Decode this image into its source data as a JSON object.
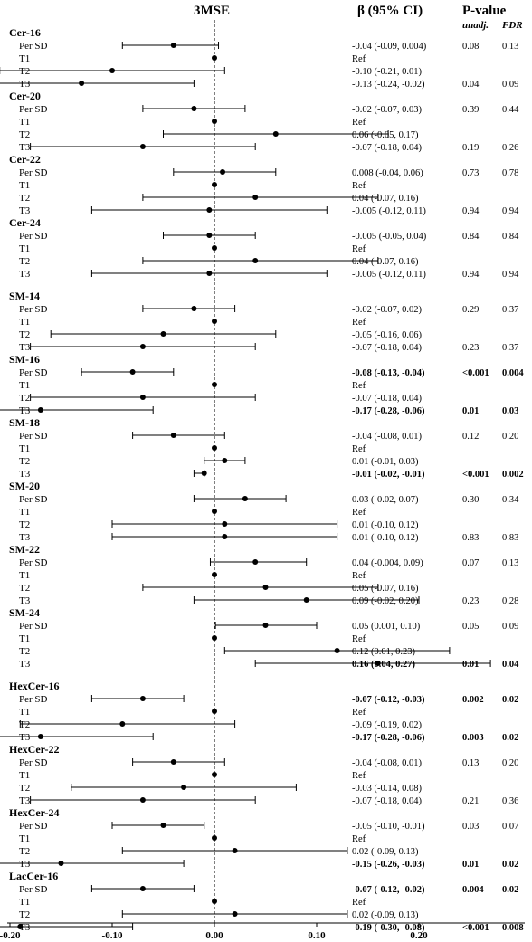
{
  "chart_data": {
    "type": "forest",
    "title": "3MSE",
    "beta_header": "β (95% CI)",
    "pvalue_header": "P-value",
    "unadj_header": "unadj.",
    "fdr_header": "FDR",
    "xlim": [
      -0.34,
      0.32
    ],
    "xticks": [
      "-0.20",
      "-0.10",
      "0.00",
      "0.10",
      "0.20"
    ],
    "xtick_values": [
      -0.2,
      -0.1,
      0.0,
      0.1,
      0.2
    ],
    "reference_line": 0.0,
    "groups": [
      {
        "name": "Cer-16",
        "rows": [
          {
            "label": "Per SD",
            "est": -0.04,
            "lo": -0.09,
            "hi": 0.004,
            "ci": "-0.04 (-0.09, 0.004)",
            "p": "0.08",
            "fdr": "0.13",
            "bold": false
          },
          {
            "label": "T1",
            "est": 0,
            "lo": null,
            "hi": null,
            "ci": "Ref",
            "p": "",
            "fdr": "",
            "bold": false
          },
          {
            "label": "T2",
            "est": -0.1,
            "lo": -0.21,
            "hi": 0.01,
            "ci": "-0.10 (-0.21, 0.01)",
            "p": "",
            "fdr": "",
            "bold": false
          },
          {
            "label": "T3",
            "est": -0.13,
            "lo": -0.24,
            "hi": -0.02,
            "ci": "-0.13 (-0.24, -0.02)",
            "p": "0.04",
            "fdr": "0.09",
            "bold": false
          }
        ]
      },
      {
        "name": "Cer-20",
        "rows": [
          {
            "label": "Per SD",
            "est": -0.02,
            "lo": -0.07,
            "hi": 0.03,
            "ci": "-0.02 (-0.07, 0.03)",
            "p": "0.39",
            "fdr": "0.44",
            "bold": false
          },
          {
            "label": "T1",
            "est": 0,
            "lo": null,
            "hi": null,
            "ci": "Ref",
            "p": "",
            "fdr": "",
            "bold": false
          },
          {
            "label": "T2",
            "est": 0.06,
            "lo": -0.05,
            "hi": 0.17,
            "ci": "0.06 (-0.05, 0.17)",
            "p": "",
            "fdr": "",
            "bold": false
          },
          {
            "label": "T3",
            "est": -0.07,
            "lo": -0.18,
            "hi": 0.04,
            "ci": "-0.07 (-0.18, 0.04)",
            "p": "0.19",
            "fdr": "0.26",
            "bold": false
          }
        ]
      },
      {
        "name": "Cer-22",
        "rows": [
          {
            "label": "Per SD",
            "est": 0.008,
            "lo": -0.04,
            "hi": 0.06,
            "ci": "0.008 (-0.04, 0.06)",
            "p": "0.73",
            "fdr": "0.78",
            "bold": false
          },
          {
            "label": "T1",
            "est": 0,
            "lo": null,
            "hi": null,
            "ci": "Ref",
            "p": "",
            "fdr": "",
            "bold": false
          },
          {
            "label": "T2",
            "est": 0.04,
            "lo": -0.07,
            "hi": 0.16,
            "ci": "0.04 (-0.07, 0.16)",
            "p": "",
            "fdr": "",
            "bold": false
          },
          {
            "label": "T3",
            "est": -0.005,
            "lo": -0.12,
            "hi": 0.11,
            "ci": "-0.005 (-0.12, 0.11)",
            "p": "0.94",
            "fdr": "0.94",
            "bold": false
          }
        ]
      },
      {
        "name": "Cer-24",
        "rows": [
          {
            "label": "Per SD",
            "est": -0.005,
            "lo": -0.05,
            "hi": 0.04,
            "ci": "-0.005 (-0.05, 0.04)",
            "p": "0.84",
            "fdr": "0.84",
            "bold": false
          },
          {
            "label": "T1",
            "est": 0,
            "lo": null,
            "hi": null,
            "ci": "Ref",
            "p": "",
            "fdr": "",
            "bold": false
          },
          {
            "label": "T2",
            "est": 0.04,
            "lo": -0.07,
            "hi": 0.16,
            "ci": "0.04 (-0.07, 0.16)",
            "p": "",
            "fdr": "",
            "bold": false
          },
          {
            "label": "T3",
            "est": -0.005,
            "lo": -0.12,
            "hi": 0.11,
            "ci": "-0.005 (-0.12, 0.11)",
            "p": "0.94",
            "fdr": "0.94",
            "bold": false
          }
        ]
      },
      {
        "name": "SM-14",
        "rows": [
          {
            "label": "Per SD",
            "est": -0.02,
            "lo": -0.07,
            "hi": 0.02,
            "ci": "-0.02 (-0.07, 0.02)",
            "p": "0.29",
            "fdr": "0.37",
            "bold": false
          },
          {
            "label": "T1",
            "est": 0,
            "lo": null,
            "hi": null,
            "ci": "Ref",
            "p": "",
            "fdr": "",
            "bold": false
          },
          {
            "label": "T2",
            "est": -0.05,
            "lo": -0.16,
            "hi": 0.06,
            "ci": "-0.05 (-0.16, 0.06)",
            "p": "",
            "fdr": "",
            "bold": false
          },
          {
            "label": "T3",
            "est": -0.07,
            "lo": -0.18,
            "hi": 0.04,
            "ci": "-0.07 (-0.18, 0.04)",
            "p": "0.23",
            "fdr": "0.37",
            "bold": false
          }
        ]
      },
      {
        "name": "SM-16",
        "rows": [
          {
            "label": "Per SD",
            "est": -0.08,
            "lo": -0.13,
            "hi": -0.04,
            "ci": "-0.08 (-0.13, -0.04)",
            "p": "<0.001",
            "fdr": "0.004",
            "bold": true
          },
          {
            "label": "T1",
            "est": 0,
            "lo": null,
            "hi": null,
            "ci": "Ref",
            "p": "",
            "fdr": "",
            "bold": false
          },
          {
            "label": "T2",
            "est": -0.07,
            "lo": -0.18,
            "hi": 0.04,
            "ci": "-0.07 (-0.18, 0.04)",
            "p": "",
            "fdr": "",
            "bold": false
          },
          {
            "label": "T3",
            "est": -0.17,
            "lo": -0.28,
            "hi": -0.06,
            "ci": "-0.17 (-0.28, -0.06)",
            "p": "0.01",
            "fdr": "0.03",
            "bold": true
          }
        ]
      },
      {
        "name": "SM-18",
        "rows": [
          {
            "label": "Per SD",
            "est": -0.04,
            "lo": -0.08,
            "hi": 0.01,
            "ci": "-0.04 (-0.08, 0.01)",
            "p": "0.12",
            "fdr": "0.20",
            "bold": false
          },
          {
            "label": "T1",
            "est": 0,
            "lo": null,
            "hi": null,
            "ci": "Ref",
            "p": "",
            "fdr": "",
            "bold": false
          },
          {
            "label": "T2",
            "est": 0.01,
            "lo": -0.01,
            "hi": 0.03,
            "ci": "0.01 (-0.01, 0.03)",
            "p": "",
            "fdr": "",
            "bold": false
          },
          {
            "label": "T3",
            "est": -0.01,
            "lo": -0.02,
            "hi": -0.01,
            "ci": "-0.01 (-0.02, -0.01)",
            "p": "<0.001",
            "fdr": "0.002",
            "bold": true
          }
        ]
      },
      {
        "name": "SM-20",
        "rows": [
          {
            "label": "Per SD",
            "est": 0.03,
            "lo": -0.02,
            "hi": 0.07,
            "ci": "0.03 (-0.02, 0.07)",
            "p": "0.30",
            "fdr": "0.34",
            "bold": false
          },
          {
            "label": "T1",
            "est": 0,
            "lo": null,
            "hi": null,
            "ci": "Ref",
            "p": "",
            "fdr": "",
            "bold": false
          },
          {
            "label": "T2",
            "est": 0.01,
            "lo": -0.1,
            "hi": 0.12,
            "ci": "0.01 (-0.10, 0.12)",
            "p": "",
            "fdr": "",
            "bold": false
          },
          {
            "label": "T3",
            "est": 0.01,
            "lo": -0.1,
            "hi": 0.12,
            "ci": "0.01 (-0.10, 0.12)",
            "p": "0.83",
            "fdr": "0.83",
            "bold": false
          }
        ]
      },
      {
        "name": "SM-22",
        "rows": [
          {
            "label": "Per SD",
            "est": 0.04,
            "lo": -0.004,
            "hi": 0.09,
            "ci": "0.04 (-0.004, 0.09)",
            "p": "0.07",
            "fdr": "0.13",
            "bold": false
          },
          {
            "label": "T1",
            "est": 0,
            "lo": null,
            "hi": null,
            "ci": "Ref",
            "p": "",
            "fdr": "",
            "bold": false
          },
          {
            "label": "T2",
            "est": 0.05,
            "lo": -0.07,
            "hi": 0.16,
            "ci": "0.05 (-0.07, 0.16)",
            "p": "",
            "fdr": "",
            "bold": false
          },
          {
            "label": "T3",
            "est": 0.09,
            "lo": -0.02,
            "hi": 0.2,
            "ci": "0.09 (-0.02, 0.20)",
            "p": "0.23",
            "fdr": "0.28",
            "bold": false
          }
        ]
      },
      {
        "name": "SM-24",
        "rows": [
          {
            "label": "Per SD",
            "est": 0.05,
            "lo": 0.001,
            "hi": 0.1,
            "ci": "0.05 (0.001, 0.10)",
            "p": "0.05",
            "fdr": "0.09",
            "bold": false
          },
          {
            "label": "T1",
            "est": 0,
            "lo": null,
            "hi": null,
            "ci": "Ref",
            "p": "",
            "fdr": "",
            "bold": false
          },
          {
            "label": "T2",
            "est": 0.12,
            "lo": 0.01,
            "hi": 0.23,
            "ci": "0.12 (0.01, 0.23)",
            "p": "",
            "fdr": "",
            "bold": false
          },
          {
            "label": "T3",
            "est": 0.16,
            "lo": 0.04,
            "hi": 0.27,
            "ci": "0.16 (0.04, 0.27)",
            "p": "0.01",
            "fdr": "0.04",
            "bold": true
          }
        ]
      },
      {
        "name": "HexCer-16",
        "rows": [
          {
            "label": "Per SD",
            "est": -0.07,
            "lo": -0.12,
            "hi": -0.03,
            "ci": "-0.07 (-0.12, -0.03)",
            "p": "0.002",
            "fdr": "0.02",
            "bold": true
          },
          {
            "label": "T1",
            "est": 0,
            "lo": null,
            "hi": null,
            "ci": "Ref",
            "p": "",
            "fdr": "",
            "bold": false
          },
          {
            "label": "T2",
            "est": -0.09,
            "lo": -0.19,
            "hi": 0.02,
            "ci": "-0.09 (-0.19, 0.02)",
            "p": "",
            "fdr": "",
            "bold": false
          },
          {
            "label": "T3",
            "est": -0.17,
            "lo": -0.28,
            "hi": -0.06,
            "ci": "-0.17 (-0.28, -0.06)",
            "p": "0.003",
            "fdr": "0.02",
            "bold": true
          }
        ]
      },
      {
        "name": "HexCer-22",
        "rows": [
          {
            "label": "Per SD",
            "est": -0.04,
            "lo": -0.08,
            "hi": 0.01,
            "ci": "-0.04 (-0.08, 0.01)",
            "p": "0.13",
            "fdr": "0.20",
            "bold": false
          },
          {
            "label": "T1",
            "est": 0,
            "lo": null,
            "hi": null,
            "ci": "Ref",
            "p": "",
            "fdr": "",
            "bold": false
          },
          {
            "label": "T2",
            "est": -0.03,
            "lo": -0.14,
            "hi": 0.08,
            "ci": "-0.03 (-0.14, 0.08)",
            "p": "",
            "fdr": "",
            "bold": false
          },
          {
            "label": "T3",
            "est": -0.07,
            "lo": -0.18,
            "hi": 0.04,
            "ci": "-0.07 (-0.18, 0.04)",
            "p": "0.21",
            "fdr": "0.36",
            "bold": false
          }
        ]
      },
      {
        "name": "HexCer-24",
        "rows": [
          {
            "label": "Per SD",
            "est": -0.05,
            "lo": -0.1,
            "hi": -0.01,
            "ci": "-0.05 (-0.10, -0.01)",
            "p": "0.03",
            "fdr": "0.07",
            "bold": false
          },
          {
            "label": "T1",
            "est": 0,
            "lo": null,
            "hi": null,
            "ci": "Ref",
            "p": "",
            "fdr": "",
            "bold": false
          },
          {
            "label": "T2",
            "est": 0.02,
            "lo": -0.09,
            "hi": 0.13,
            "ci": "0.02 (-0.09, 0.13)",
            "p": "",
            "fdr": "",
            "bold": false
          },
          {
            "label": "T3",
            "est": -0.15,
            "lo": -0.26,
            "hi": -0.03,
            "ci": "-0.15 (-0.26, -0.03)",
            "p": "0.01",
            "fdr": "0.02",
            "bold": true
          }
        ]
      },
      {
        "name": "LacCer-16",
        "rows": [
          {
            "label": "Per SD",
            "est": -0.07,
            "lo": -0.12,
            "hi": -0.02,
            "ci": "-0.07 (-0.12, -0.02)",
            "p": "0.004",
            "fdr": "0.02",
            "bold": true
          },
          {
            "label": "T1",
            "est": 0,
            "lo": null,
            "hi": null,
            "ci": "Ref",
            "p": "",
            "fdr": "",
            "bold": false
          },
          {
            "label": "T2",
            "est": 0.02,
            "lo": -0.09,
            "hi": 0.13,
            "ci": "0.02 (-0.09, 0.13)",
            "p": "",
            "fdr": "",
            "bold": false
          },
          {
            "label": "T3",
            "est": -0.19,
            "lo": -0.3,
            "hi": -0.08,
            "ci": "-0.19 (-0.30, -0.08)",
            "p": "<0.001",
            "fdr": "0.008",
            "bold": true
          }
        ]
      }
    ]
  }
}
